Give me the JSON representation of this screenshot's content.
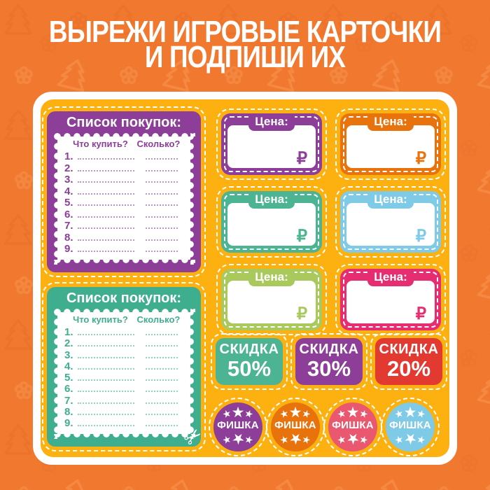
{
  "title": {
    "line1": "ВЫРЕЖИ ИГРОВЫЕ КАРТОЧКИ",
    "line2": "И ПОДПИШИ ИХ"
  },
  "colors": {
    "background": "#f1792f",
    "pattern_dark": "#e76d28",
    "pattern_light": "#f89552",
    "panel_border": "#ffffff",
    "panel_inner": "#fcb110",
    "purple": "#8c3e98",
    "orange": "#e8730d",
    "teal": "#46b293",
    "blue": "#7fcae6",
    "green": "#a9c95d",
    "pink": "#e62d72",
    "red": "#e23a31",
    "rose": "#e9586f"
  },
  "shopping_lists": [
    {
      "title": "Список покупок:",
      "col_what": "Что купить?",
      "col_qty": "Сколько?",
      "rows": [
        "1.",
        "2.",
        "3.",
        "4.",
        "5.",
        "6.",
        "7.",
        "8.",
        "9."
      ],
      "color": "#8c3e98"
    },
    {
      "title": "Список покупок:",
      "col_what": "Что купить?",
      "col_qty": "Сколько?",
      "rows": [
        "1.",
        "2.",
        "3.",
        "4.",
        "5.",
        "6.",
        "7.",
        "8.",
        "9."
      ],
      "color": "#3fae8f"
    }
  ],
  "price_cards": [
    {
      "label": "Цена:",
      "currency": "₽",
      "color": "#8c3e98"
    },
    {
      "label": "Цена:",
      "currency": "₽",
      "color": "#e8730d"
    },
    {
      "label": "Цена:",
      "currency": "₽",
      "color": "#4cb492"
    },
    {
      "label": "Цена:",
      "currency": "₽",
      "color": "#7fcae6"
    },
    {
      "label": "Цена:",
      "currency": "₽",
      "color": "#a9c95d"
    },
    {
      "label": "Цена:",
      "currency": "₽",
      "color": "#e62d72"
    }
  ],
  "discount_cards": [
    {
      "label": "СКИДКА",
      "value": "50%",
      "color": "#4cb492"
    },
    {
      "label": "СКИДКА",
      "value": "30%",
      "color": "#8c3e98"
    },
    {
      "label": "СКИДКА",
      "value": "20%",
      "color": "#e23a31"
    }
  ],
  "chips": [
    {
      "label": "ФИШКА",
      "color": "#8c3e98"
    },
    {
      "label": "ФИШКА",
      "color": "#e8730d"
    },
    {
      "label": "ФИШКА",
      "color": "#e9586f"
    },
    {
      "label": "ФИШКА",
      "color": "#7fcae6"
    }
  ],
  "icons": {
    "star": "★",
    "scissors": "✂"
  }
}
